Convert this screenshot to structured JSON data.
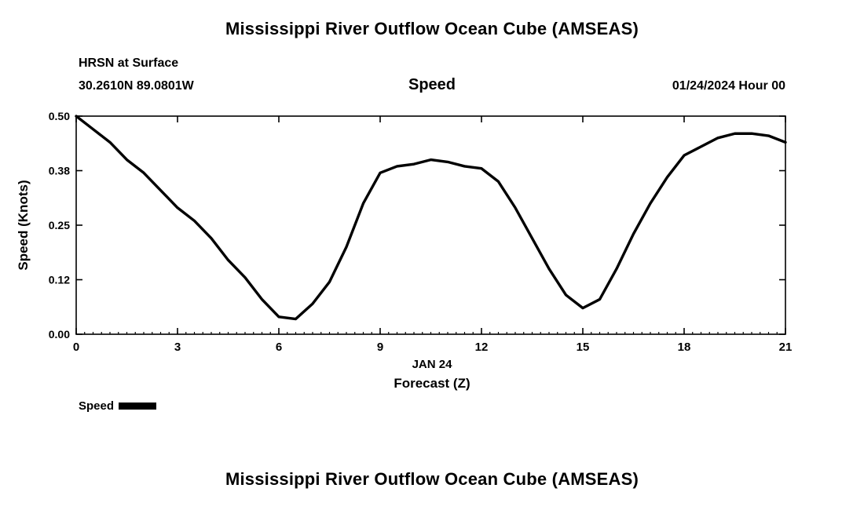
{
  "page": {
    "top_title": "Mississippi River Outflow Ocean Cube (AMSEAS)",
    "bottom_title": "Mississippi River Outflow Ocean Cube (AMSEAS)",
    "station": "HRSN at Surface",
    "coordinates": "30.2610N  89.0801W",
    "panel_title": "Speed",
    "run_time": "01/24/2024 Hour 00",
    "x_axis_date": "JAN 24",
    "x_axis_label": "Forecast (Z)",
    "y_axis_label": "Speed (Knots)",
    "legend_label": "Speed",
    "line_color": "#000000",
    "frame_color": "#000000"
  },
  "chart_data": {
    "type": "line",
    "title": "Speed",
    "subtitle_left": [
      "HRSN at Surface",
      "30.2610N  89.0801W"
    ],
    "subtitle_right": "01/24/2024 Hour 00",
    "xlabel": "Forecast (Z)",
    "x_date": "JAN 24",
    "ylabel": "Speed (Knots)",
    "xlim": [
      0,
      21
    ],
    "ylim": [
      0,
      0.5
    ],
    "grid": false,
    "legend_position": "bottom-left",
    "x_ticks": [
      0,
      3,
      6,
      9,
      12,
      15,
      18,
      21
    ],
    "x_tick_labels": [
      "0",
      "3",
      "6",
      "9",
      "12",
      "15",
      "18",
      "21"
    ],
    "x_minor_tick_step": 0.25,
    "y_tick_values": [
      0,
      0.125,
      0.25,
      0.375,
      0.5
    ],
    "y_tick_labels": [
      "0.00",
      "0.12",
      "0.25",
      "0.38",
      "0.50"
    ],
    "series": [
      {
        "name": "Speed",
        "x": [
          0,
          0.5,
          1,
          1.5,
          2,
          2.5,
          3,
          3.5,
          4,
          4.5,
          5,
          5.5,
          6,
          6.5,
          7,
          7.5,
          8,
          8.5,
          9,
          9.5,
          10,
          10.5,
          11,
          11.5,
          12,
          12.5,
          13,
          13.5,
          14,
          14.5,
          15,
          15.5,
          16,
          16.5,
          17,
          17.5,
          18,
          18.5,
          19,
          19.5,
          20,
          20.5,
          21
        ],
        "values": [
          0.5,
          0.47,
          0.44,
          0.4,
          0.37,
          0.33,
          0.29,
          0.26,
          0.22,
          0.17,
          0.13,
          0.08,
          0.04,
          0.035,
          0.07,
          0.12,
          0.2,
          0.3,
          0.37,
          0.385,
          0.39,
          0.4,
          0.395,
          0.385,
          0.38,
          0.35,
          0.29,
          0.22,
          0.15,
          0.09,
          0.06,
          0.08,
          0.15,
          0.23,
          0.3,
          0.36,
          0.41,
          0.43,
          0.45,
          0.46,
          0.46,
          0.455,
          0.44
        ]
      }
    ]
  }
}
